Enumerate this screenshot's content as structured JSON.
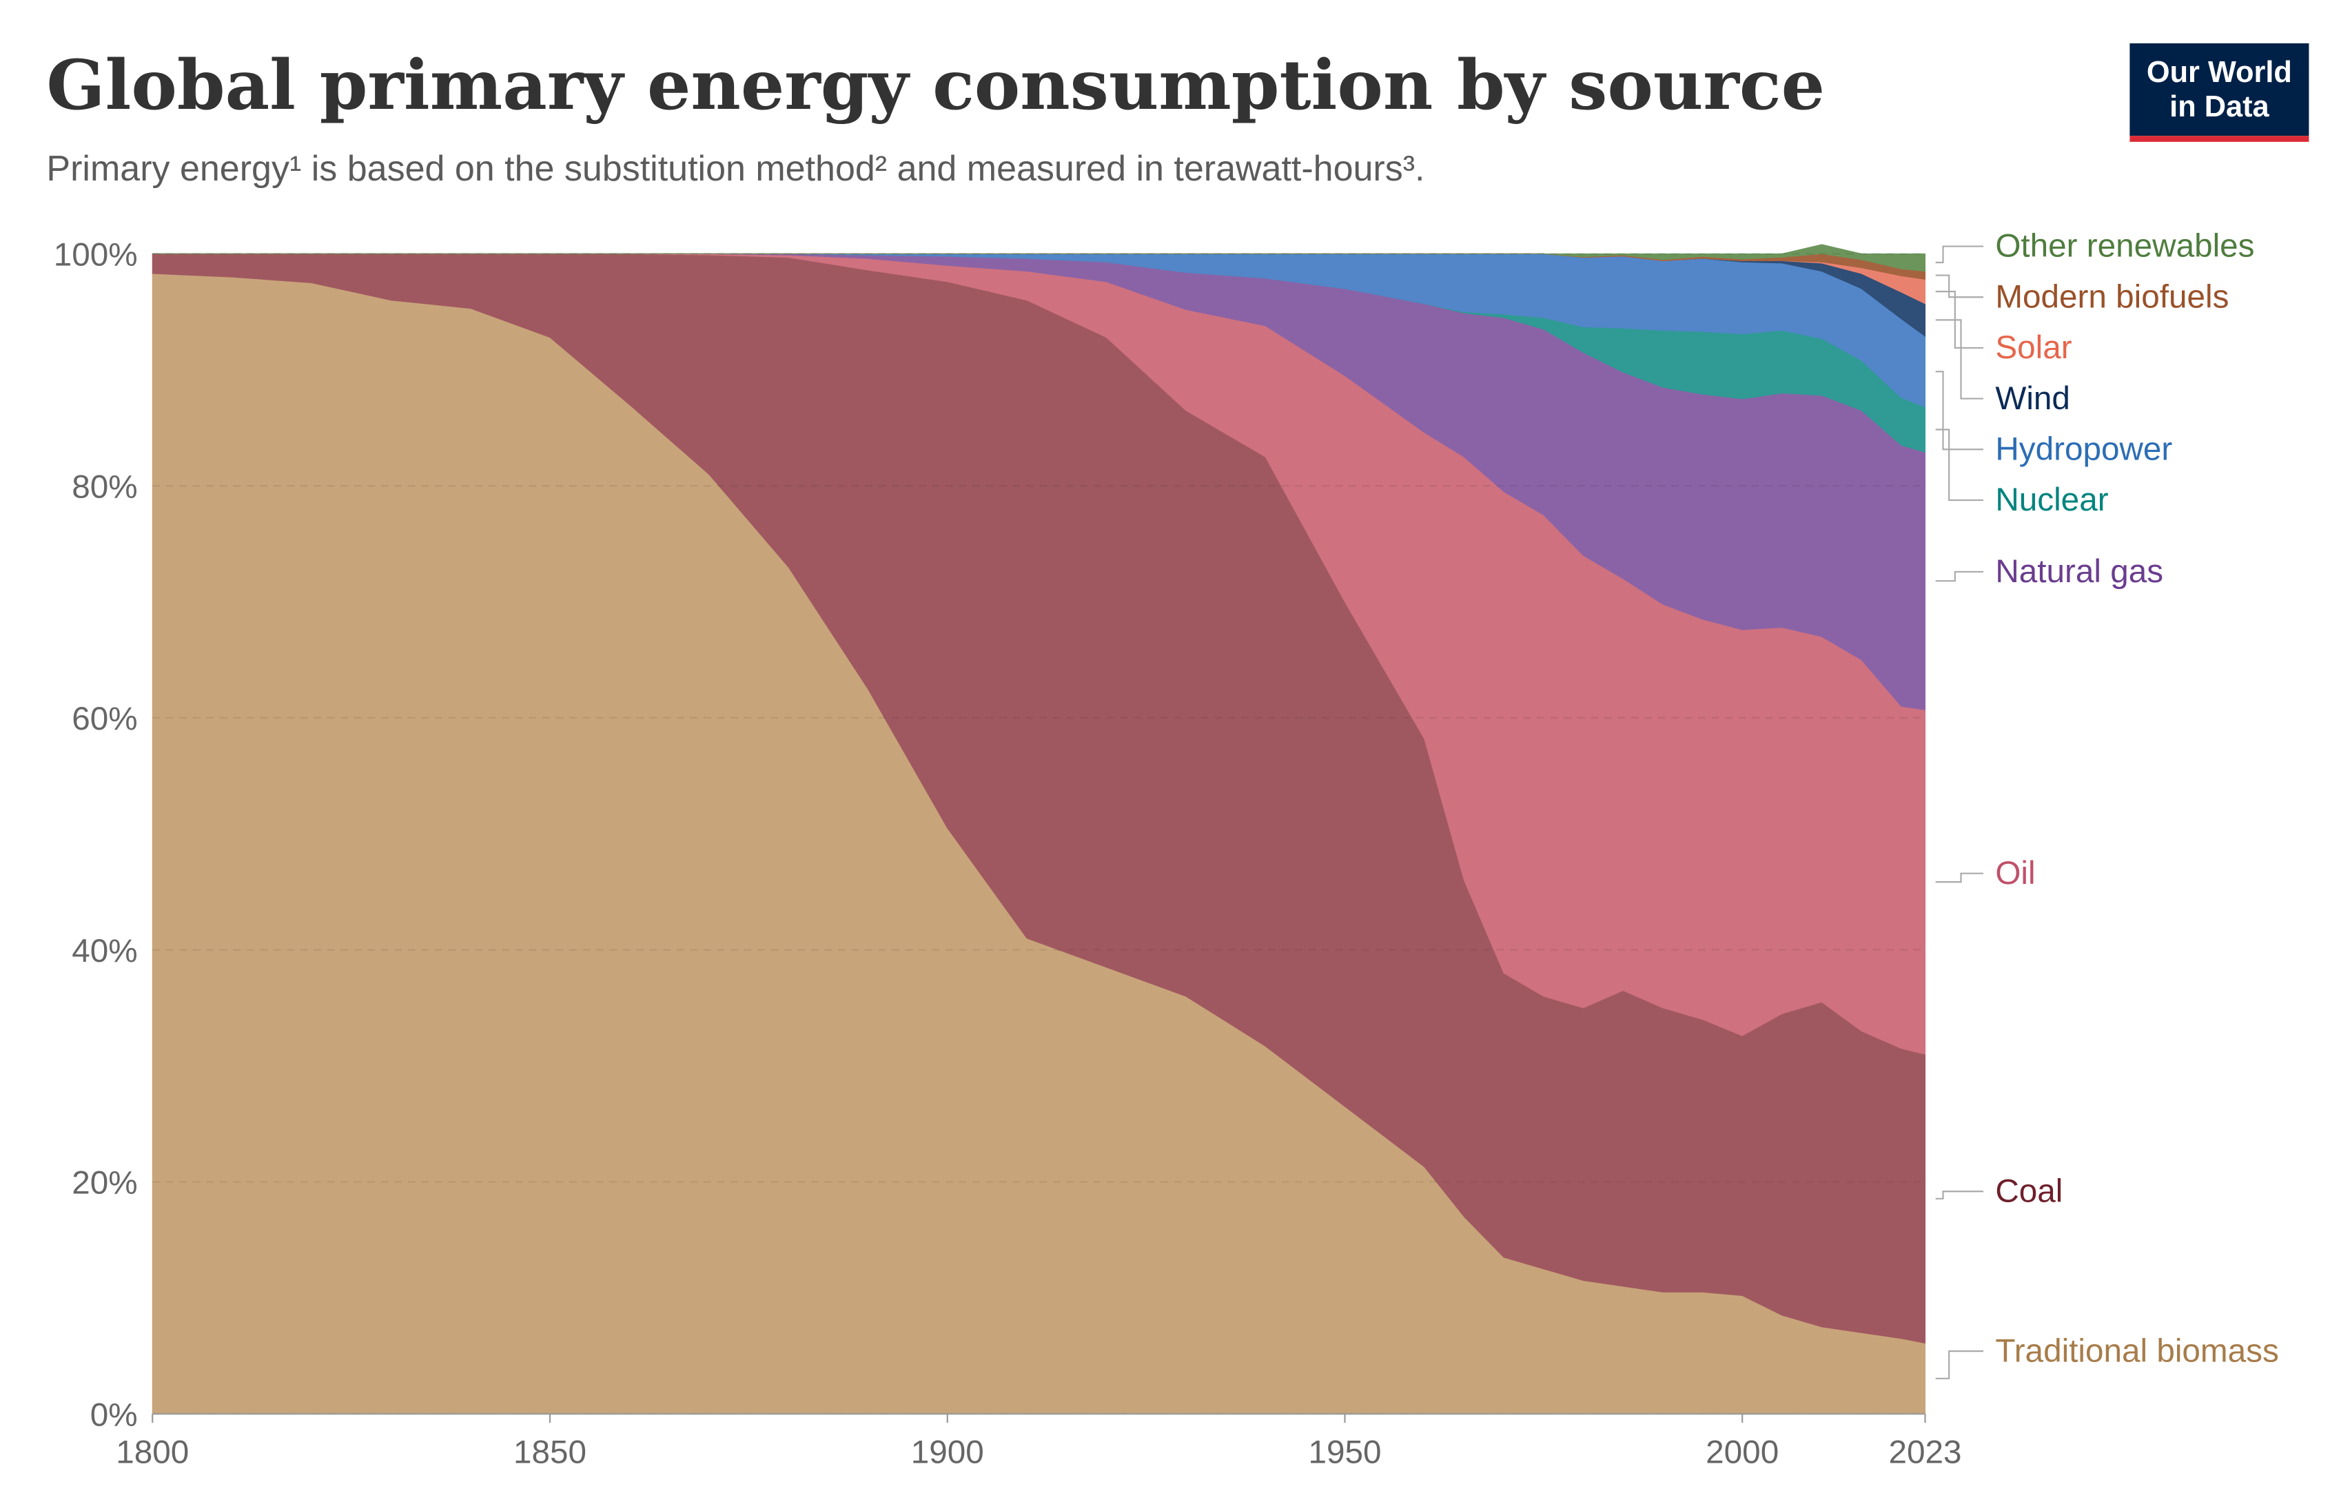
{
  "chart_data": {
    "type": "stacked_area_percent",
    "title": "Global primary energy consumption by source",
    "subtitle": "Primary energy¹ is based on the substitution method² and measured in terawatt-hours³.",
    "logo": [
      "Our World",
      "in Data"
    ],
    "x": [
      1800,
      1810,
      1820,
      1830,
      1840,
      1850,
      1860,
      1870,
      1880,
      1890,
      1900,
      1910,
      1920,
      1930,
      1940,
      1950,
      1960,
      1965,
      1970,
      1975,
      1980,
      1985,
      1990,
      1995,
      2000,
      2005,
      2010,
      2015,
      2020,
      2023
    ],
    "series": [
      {
        "name": "Traditional biomass",
        "color": "#c8a47a",
        "label_color": "#a77c4a",
        "values": [
          98.3,
          98,
          97.5,
          96,
          95.3,
          92.8,
          87,
          81,
          73,
          62.5,
          50.5,
          41,
          38.5,
          36,
          31.7,
          26.5,
          21.3,
          17,
          13.5,
          12.5,
          11.5,
          11,
          10.5,
          10.5,
          10.2,
          8.5,
          7.5,
          7,
          6.5,
          6.1
        ]
      },
      {
        "name": "Coal",
        "color": "#a05860",
        "label_color": "#6e1f2b",
        "values": [
          1.7,
          2,
          2.5,
          4,
          4.7,
          7.2,
          13,
          18.9,
          26.7,
          36.1,
          47.1,
          55,
          54.3,
          50.5,
          50.8,
          43.5,
          36.9,
          29,
          24.5,
          23.5,
          23.5,
          25.5,
          24.5,
          23.5,
          22.4,
          26,
          28,
          26,
          25,
          24.9
        ]
      },
      {
        "name": "Oil",
        "color": "#cf717f",
        "label_color": "#c0506a",
        "values": [
          0,
          0,
          0,
          0,
          0,
          0,
          0,
          0.1,
          0.2,
          1,
          1.4,
          2.5,
          4.8,
          8.7,
          11.3,
          19.5,
          26.4,
          36.5,
          41.5,
          41.5,
          39,
          35.5,
          34.8,
          34.5,
          35,
          33.3,
          31.5,
          32,
          29.5,
          29.7
        ]
      },
      {
        "name": "Natural gas",
        "color": "#8a63a7",
        "label_color": "#6a3d8f",
        "values": [
          0,
          0,
          0,
          0,
          0,
          0,
          0,
          0,
          0.1,
          0.3,
          0.8,
          1.1,
          1.7,
          3.2,
          4.1,
          7.5,
          11.1,
          12.4,
          15,
          16,
          17.5,
          17.8,
          18.7,
          19.4,
          19.9,
          20.2,
          20.8,
          21.5,
          22.5,
          22.2
        ]
      },
      {
        "name": "Nuclear",
        "color": "#2f9b94",
        "label_color": "#00847e",
        "values": [
          0,
          0,
          0,
          0,
          0,
          0,
          0,
          0,
          0,
          0,
          0,
          0,
          0,
          0,
          0,
          0,
          0,
          0.1,
          0.3,
          1,
          2.2,
          3.8,
          4.9,
          5.4,
          5.6,
          5.4,
          4.9,
          4.3,
          4.1,
          3.9
        ]
      },
      {
        "name": "Hydropower",
        "color": "#5286c8",
        "label_color": "#2c6db5",
        "values": [
          0,
          0,
          0,
          0,
          0,
          0,
          0,
          0,
          0,
          0.1,
          0.2,
          0.4,
          0.7,
          1.6,
          2.1,
          3,
          4.3,
          5,
          5.2,
          5.5,
          6,
          6.2,
          6,
          6.3,
          6.2,
          5.8,
          5.8,
          6.2,
          6.8,
          6.1
        ]
      },
      {
        "name": "Wind",
        "color": "#2f4e78",
        "label_color": "#0b2a57",
        "values": [
          0,
          0,
          0,
          0,
          0,
          0,
          0,
          0,
          0,
          0,
          0,
          0,
          0,
          0,
          0,
          0,
          0,
          0,
          0,
          0,
          0,
          0,
          0,
          0.02,
          0.1,
          0.2,
          0.7,
          1.3,
          2.3,
          2.8
        ]
      },
      {
        "name": "Solar",
        "color": "#e8826f",
        "label_color": "#e5664b",
        "values": [
          0,
          0,
          0,
          0,
          0,
          0,
          0,
          0,
          0,
          0,
          0,
          0,
          0,
          0,
          0,
          0,
          0,
          0,
          0,
          0,
          0,
          0,
          0,
          0,
          0,
          0.01,
          0.1,
          0.5,
          1.4,
          2.1
        ]
      },
      {
        "name": "Modern biofuels",
        "color": "#a6633f",
        "label_color": "#9a5129",
        "values": [
          0,
          0,
          0,
          0,
          0,
          0,
          0,
          0,
          0,
          0,
          0,
          0,
          0,
          0,
          0,
          0,
          0,
          0,
          0,
          0,
          0.05,
          0.1,
          0.1,
          0.15,
          0.15,
          0.3,
          0.7,
          0.7,
          0.6,
          0.7
        ]
      },
      {
        "name": "Other renewables",
        "color": "#6c955b",
        "label_color": "#4f7d3e",
        "values": [
          0,
          0,
          0,
          0,
          0,
          0,
          0,
          0,
          0,
          0,
          0,
          0,
          0,
          0,
          0,
          0,
          0,
          0,
          0,
          0,
          0.25,
          0.1,
          0.5,
          0.23,
          0.45,
          0.29,
          0.8,
          0.5,
          1.3,
          1.5
        ]
      }
    ],
    "xlim": [
      1800,
      2023
    ],
    "xticks": [
      1800,
      1850,
      1900,
      1950,
      2000,
      2023
    ],
    "ylim": [
      0,
      100
    ],
    "yticks": [
      {
        "value": 0,
        "label": "0%"
      },
      {
        "value": 20,
        "label": "20%"
      },
      {
        "value": 40,
        "label": "40%"
      },
      {
        "value": 60,
        "label": "60%"
      },
      {
        "value": 80,
        "label": "80%"
      },
      {
        "value": 100,
        "label": "100%"
      }
    ],
    "grid": true
  }
}
